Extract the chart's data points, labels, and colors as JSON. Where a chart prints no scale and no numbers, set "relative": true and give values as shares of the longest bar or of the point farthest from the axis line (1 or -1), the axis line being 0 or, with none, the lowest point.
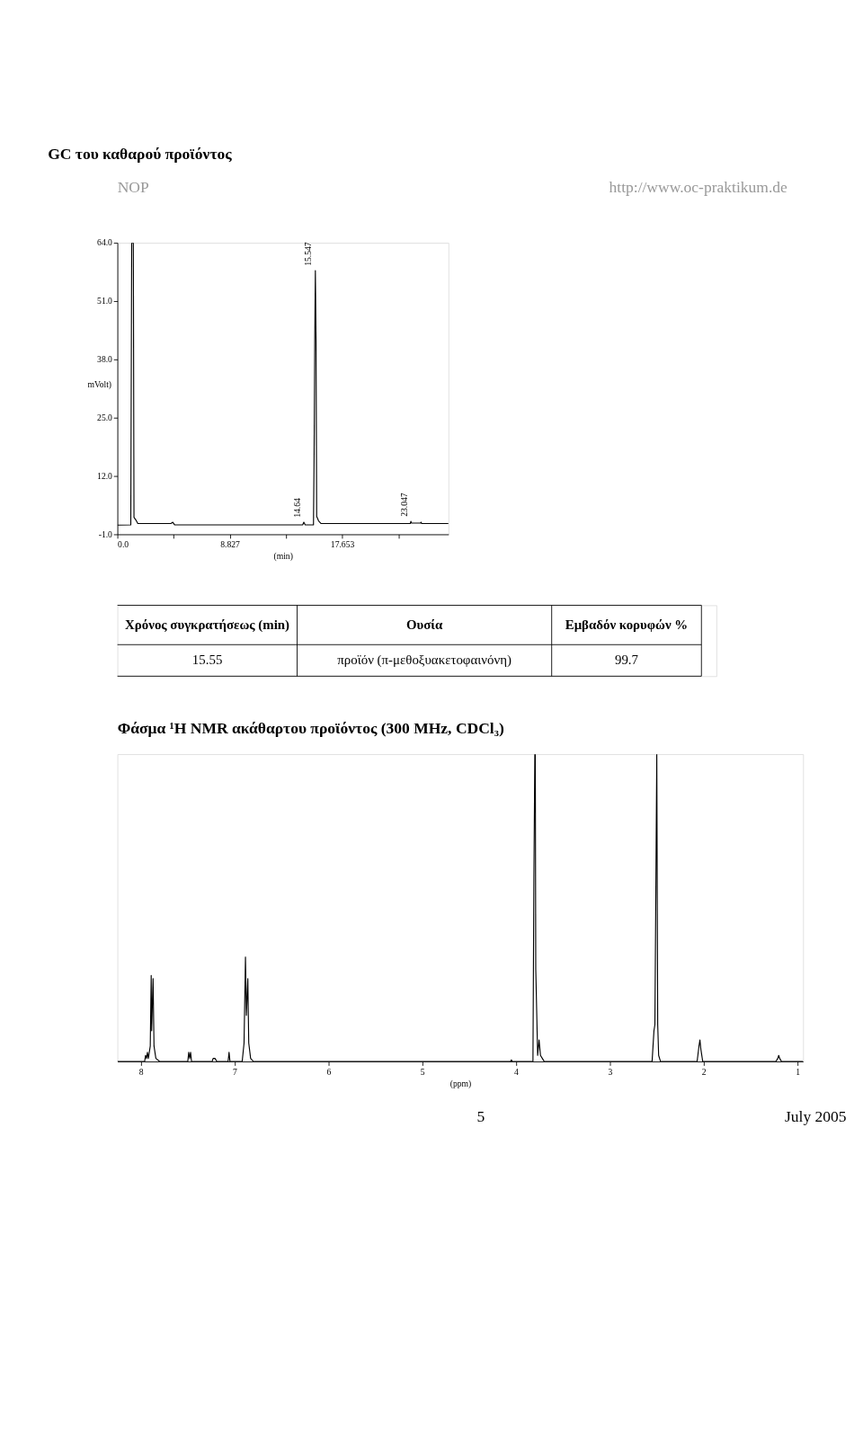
{
  "chart_data": [
    {
      "type": "line",
      "title": "GC του καθαρού προϊόντος",
      "xlabel": "(min)",
      "ylabel": "mVolt)",
      "x": [
        0,
        1.05,
        1.12,
        1.25,
        1.3,
        1.45,
        1.6,
        4.2,
        4.35,
        4.5,
        14.55,
        14.64,
        14.75,
        15.4,
        15.45,
        15.5,
        15.547,
        15.6,
        15.65,
        15.8,
        16,
        23.0,
        23.047,
        23.1,
        23.8,
        23.85,
        23.9,
        26
      ],
      "series": [
        {
          "color": "#000000",
          "values": [
            1.05,
            1.1,
            64,
            64,
            2.8,
            2.2,
            1.4,
            1.4,
            1.7,
            1.1,
            1.1,
            1.7,
            1.1,
            1.1,
            17.4,
            42.2,
            57.8,
            42.2,
            3,
            2,
            1.4,
            1.4,
            1.9,
            1.5,
            1.5,
            1.7,
            1.4,
            1.4
          ]
        }
      ],
      "xlim": [
        0,
        26
      ],
      "ylim": [
        -1,
        64
      ],
      "xticks": [
        {
          "value": 0,
          "label": "0.0"
        },
        {
          "value": 4.41,
          "label": null
        },
        8.827,
        {
          "value": 13.24,
          "label": null
        },
        17.653,
        {
          "value": 22.07,
          "label": null
        }
      ],
      "yticks": [
        {
          "value": -1,
          "label": "-1.0"
        },
        {
          "value": 12,
          "label": "12.0"
        },
        {
          "value": 25,
          "label": "25.0"
        },
        {
          "value": 38,
          "label": "38.0"
        },
        {
          "value": 51,
          "label": "51.0"
        },
        {
          "value": 64,
          "label": "64.0"
        }
      ],
      "grid": false,
      "legend": false,
      "annotations": [
        "NOP",
        "http://www.oc-praktikum.de",
        {
          "text": "14.64",
          "x": 14.64,
          "y": 1.7
        },
        {
          "text": "15.547",
          "x": 15.547,
          "y": 57.8
        },
        {
          "text": "23.047",
          "x": 23.047,
          "y": 1.9
        }
      ]
    },
    {
      "type": "other",
      "annotations": [
        "Χρόνος συγκρατήσεως (min)",
        "Ουσία",
        "Εμβαδόν κορυφών %",
        "15.55",
        "προϊόν (π-μεθοξυακετοφαινόνη)",
        "99.7"
      ]
    },
    {
      "type": "line",
      "title": "Φάσμα ¹H NMR ακάθαρτου προϊόντος (300 MHz, CDCl₃)",
      "xlabel": "(ppm)",
      "relative": true,
      "x": [
        8.25,
        7.96,
        7.95,
        7.94,
        7.93,
        7.92,
        7.9,
        7.89,
        7.885,
        7.87,
        7.86,
        7.84,
        7.8,
        7.5,
        7.49,
        7.48,
        7.47,
        7.46,
        7.24,
        7.23,
        7.21,
        7.19,
        7.07,
        7.06,
        7.05,
        6.92,
        6.9,
        6.885,
        6.875,
        6.86,
        6.85,
        6.83,
        6.8,
        4.06,
        4.05,
        4.04,
        3.82,
        3.81,
        3.8,
        3.795,
        3.79,
        3.77,
        3.755,
        3.74,
        3.72,
        3.7,
        2.55,
        2.53,
        2.52,
        2.51,
        2.5,
        2.49,
        2.48,
        2.46,
        2.07,
        2.05,
        2.04,
        2.03,
        2.01,
        1.23,
        1.21,
        1.2,
        1.19,
        1.17,
        0.94
      ],
      "series": [
        {
          "color": "#000000",
          "values": [
            0,
            0,
            0.02,
            0.01,
            0.03,
            0.01,
            0.05,
            0.28,
            0.1,
            0.27,
            0.05,
            0.01,
            0,
            0,
            0.03,
            0.01,
            0.03,
            0,
            0,
            0.01,
            0.01,
            0,
            0,
            0.03,
            0,
            0,
            0.06,
            0.34,
            0.15,
            0.27,
            0.06,
            0.01,
            0,
            0,
            0.005,
            0,
            0,
            0.6,
            1.0,
            1.0,
            0.3,
            0.02,
            0.07,
            0.02,
            0.01,
            0,
            0,
            0.1,
            0.12,
            0.55,
            1.0,
            0.12,
            0.02,
            0,
            0,
            0.05,
            0.07,
            0.04,
            0,
            0,
            0.01,
            0.02,
            0.01,
            0,
            0
          ]
        }
      ],
      "xlim": [
        8.25,
        0.94
      ],
      "xticks": [
        8,
        7,
        6,
        5,
        4,
        3,
        2,
        1
      ],
      "grid": false,
      "legend": false,
      "annotations": [
        "5",
        "July 2005"
      ]
    }
  ]
}
